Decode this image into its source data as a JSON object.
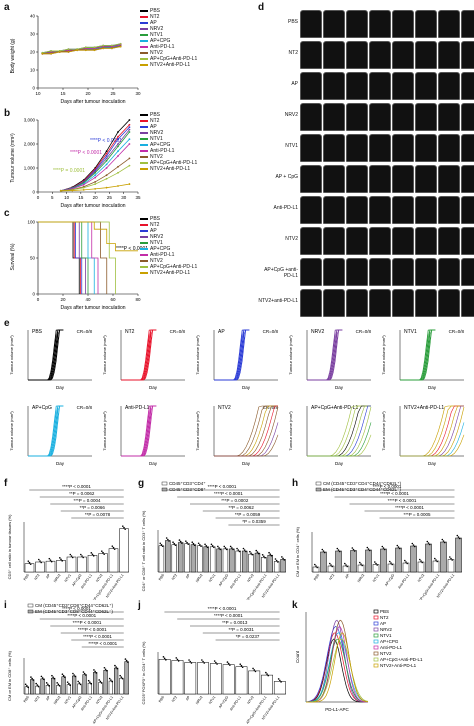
{
  "panels": {
    "a": "a",
    "b": "b",
    "c": "c",
    "d": "d",
    "e": "e",
    "f": "f",
    "g": "g",
    "h": "h",
    "i": "i",
    "j": "j",
    "k": "k"
  },
  "groups": [
    "PBS",
    "NT2",
    "AP",
    "NRV2",
    "NTV1",
    "AP+CPG",
    "Anti-PD-L1",
    "NTV2",
    "AP+CpG+Anti-PD-L1",
    "NTV2+Anti-PD-L1"
  ],
  "group_colors": [
    "#000000",
    "#e8132b",
    "#2b3bd6",
    "#7a3fa0",
    "#2a9d3b",
    "#1ab0e0",
    "#c22da8",
    "#8b5a2b",
    "#a0c040",
    "#c8a000"
  ],
  "panel_a": {
    "ylabel": "Body weight (g)",
    "xlabel": "Days after tumour inoculation",
    "yticks": [
      "0",
      "10",
      "20",
      "30",
      "40"
    ],
    "xticks": [
      "10",
      "15",
      "20",
      "25",
      "30"
    ]
  },
  "panel_b": {
    "ylabel": "Tumour volume (mm³)",
    "xlabel": "Days after tumour inoculation",
    "yticks": [
      "0",
      "1,000",
      "2,000",
      "3,000"
    ],
    "xticks": [
      "0",
      "5",
      "10",
      "15",
      "20",
      "25",
      "30",
      "35"
    ],
    "p1": "****P < 0.0001",
    "p2": "****P < 0.0001",
    "p3": "****P = 0.0001"
  },
  "panel_c": {
    "ylabel": "Survival (%)",
    "xlabel": "Days after tumour inoculation",
    "yticks": [
      "0",
      "50",
      "100"
    ],
    "xticks": [
      "0",
      "20",
      "40",
      "60",
      "80"
    ],
    "p1": "****P < 0.0001"
  },
  "panel_d": {
    "labels": [
      "PBS",
      "NT2",
      "AP",
      "NRV2",
      "NTV1",
      "AP + CpG",
      "Anti-PD-L1",
      "NTV2",
      "AP+CpG +anti-PD-L1",
      "NTV2+anti-PD-L1"
    ]
  },
  "panel_e": {
    "titles": [
      "PBS",
      "NT2",
      "AP",
      "NRV2",
      "NTV1",
      "AP+CpG",
      "Anti-PD-L1",
      "NTV2",
      "AP+CpG+Anti-PD-L1",
      "NTV2+Anti-PD-L1"
    ],
    "cr": [
      "CR=0/8",
      "CR=0/8",
      "CR=0/8",
      "CR=0/8",
      "CR=0/8",
      "CR=0/8",
      "",
      "CR=0/8",
      "",
      ""
    ],
    "ylabel": "Tumour volume (mm³)",
    "xlabel": "Day"
  },
  "panel_f": {
    "ylabel": "CD3⁺ cell ratio in tumour tissues (%)",
    "sig": [
      "****P < 0.0001",
      "**P = 0.0062",
      "***P = 0.0004",
      "**P = 0.0066",
      "**P = 0.0078"
    ]
  },
  "panel_g": {
    "ylabel": "CD4⁺ or CD8⁺ T cell ratio in CD3⁺ T cells (%)",
    "legend": [
      "CD45⁺CD3⁺CD4⁺",
      "CD45⁺CD3⁺CD8⁺"
    ],
    "sig": [
      "****P < 0.0001",
      "****P < 0.0001",
      "***P = 0.0002",
      "**P = 0.0062",
      "**P = 0.0059",
      "*P = 0.0359",
      "**P = 0.0006",
      "**P = 0.0026"
    ]
  },
  "panel_h": {
    "ylabel": "CM or EM in CD4⁺ cells (%)",
    "legend": [
      "CM (CD45⁺CD3⁺CD4⁺CD44⁺CD62L⁺)",
      "EM (CD45⁺CD3⁺CD4⁺CD44⁺CD62L⁻)"
    ],
    "sig": [
      "****P < 0.0001",
      "****P < 0.0001",
      "****P < 0.0001",
      "****P < 0.0001",
      "***P = 0.0005",
      "**P = 0.0010"
    ]
  },
  "panel_i": {
    "ylabel": "CM or EM in CD8⁺ cells (%)",
    "legend": [
      "CM (CD45⁺CD3⁺CD8⁺CD44⁺CD62L⁺)",
      "EM (CD45⁺CD3⁺CD8⁺CD44⁺CD62L⁻)"
    ],
    "sig": [
      "****P < 0.0001",
      "****P < 0.0001",
      "****P < 0.0001",
      "****P < 0.0001",
      "****P < 0.0001",
      "****P < 0.0001"
    ]
  },
  "panel_j": {
    "ylabel": "CD25⁺FOXP3⁺ in CD4⁺ T cells (%)",
    "sig": [
      "****P < 0.0001",
      "****P < 0.0001",
      "**P = 0.0013",
      "**P = 0.0031",
      "*P = 0.0237"
    ]
  },
  "panel_k": {
    "xlabel": "PD-L1-APC",
    "ylabel": "Count"
  },
  "xcats": [
    "PBS",
    "NT2",
    "AP",
    "NRV2",
    "NTV1",
    "AP+CpG",
    "Anti-PD-L1",
    "NTV2",
    "AP+CpG+Anti-PD-L1",
    "NTV2+Anti-PD-L1"
  ],
  "chart_data": [
    {
      "type": "line",
      "title": "",
      "xlabel": "Days after tumour inoculation",
      "ylabel": "Body weight (g)",
      "x": [
        8,
        10,
        12,
        14,
        16,
        18,
        20,
        22,
        24,
        26
      ],
      "ylim": [
        0,
        40
      ],
      "series": [
        {
          "name": "PBS",
          "values": [
            19,
            20,
            20,
            21,
            21,
            22,
            22,
            23,
            23,
            24
          ]
        },
        {
          "name": "NTV2+Anti-PD-L1",
          "values": [
            19,
            19,
            20,
            20,
            21,
            21,
            21,
            22,
            22,
            23
          ]
        }
      ]
    },
    {
      "type": "line",
      "title": "",
      "xlabel": "Days after tumour inoculation",
      "ylabel": "Tumour volume (mm³)",
      "x": [
        8,
        12,
        16,
        20,
        24,
        28,
        32
      ],
      "ylim": [
        0,
        3000
      ],
      "series": [
        {
          "name": "PBS",
          "values": [
            50,
            200,
            500,
            1000,
            1700,
            2500,
            3000
          ]
        },
        {
          "name": "NT2",
          "values": [
            50,
            180,
            450,
            950,
            1600,
            2300,
            2800
          ]
        },
        {
          "name": "AP",
          "values": [
            50,
            170,
            420,
            900,
            1500,
            2200,
            2700
          ]
        },
        {
          "name": "NRV2",
          "values": [
            50,
            160,
            400,
            850,
            1400,
            2000,
            2600
          ]
        },
        {
          "name": "NTV1",
          "values": [
            50,
            150,
            380,
            800,
            1300,
            1900,
            2500
          ]
        },
        {
          "name": "AP+CPG",
          "values": [
            50,
            140,
            330,
            700,
            1150,
            1700,
            2200
          ]
        },
        {
          "name": "Anti-PD-L1",
          "values": [
            50,
            130,
            300,
            600,
            1000,
            1500,
            2000
          ]
        },
        {
          "name": "NTV2",
          "values": [
            50,
            100,
            220,
            420,
            700,
            1050,
            1400
          ]
        },
        {
          "name": "AP+CpG+Anti-PD-L1",
          "values": [
            50,
            90,
            180,
            330,
            550,
            800,
            1100
          ]
        },
        {
          "name": "NTV2+Anti-PD-L1",
          "values": [
            50,
            60,
            90,
            130,
            180,
            250,
            330
          ]
        }
      ]
    },
    {
      "type": "line",
      "title": "",
      "xlabel": "Days after tumour inoculation",
      "ylabel": "Survival (%)",
      "x": [
        0,
        20,
        30,
        35,
        40,
        50,
        60,
        70,
        80
      ],
      "ylim": [
        0,
        100
      ],
      "series": [
        {
          "name": "PBS",
          "values": [
            100,
            100,
            50,
            0,
            0,
            0,
            0,
            0,
            0
          ]
        },
        {
          "name": "NTV2+Anti-PD-L1",
          "values": [
            100,
            100,
            100,
            100,
            100,
            90,
            70,
            60,
            60
          ]
        }
      ]
    },
    {
      "type": "bar",
      "title": "",
      "ylabel": "CD3⁺ cell ratio in tumour tissues (%)",
      "categories": [
        "PBS",
        "NT2",
        "AP",
        "NRV2",
        "NTV1",
        "AP+CpG",
        "Anti-PD-L1",
        "NTV2",
        "AP+CpG+Anti-PD-L1",
        "NTV2+Anti-PD-L1"
      ],
      "values": [
        1.0,
        1.2,
        1.3,
        1.4,
        1.8,
        1.8,
        2.0,
        2.2,
        2.8,
        5.2
      ],
      "ylim": [
        0,
        6
      ]
    },
    {
      "type": "bar",
      "title": "",
      "ylabel": "CD25⁺FOXP3⁺ in CD4⁺ T cells (%)",
      "categories": [
        "PBS",
        "NT2",
        "AP",
        "NRV2",
        "NTV1",
        "AP+CpG",
        "Anti-PD-L1",
        "NTV2",
        "AP+CpG+Anti-PD-L1",
        "NTV2+Anti-PD-L1"
      ],
      "values": [
        33,
        32,
        30,
        30,
        29,
        28,
        26,
        22,
        18,
        12
      ],
      "ylim": [
        0,
        40
      ]
    }
  ]
}
